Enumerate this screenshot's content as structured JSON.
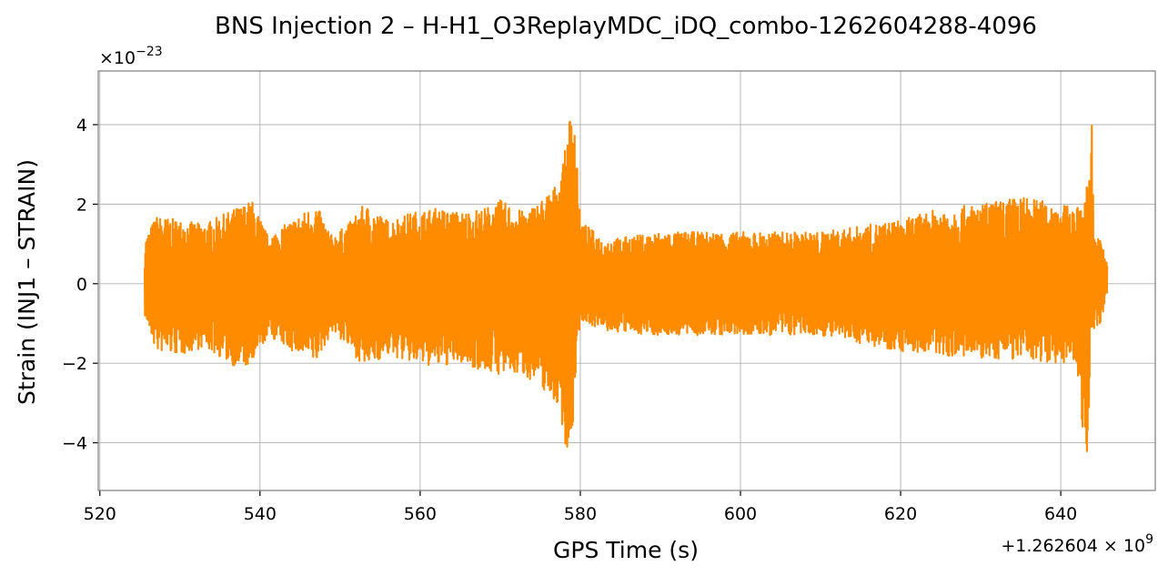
{
  "chart_data": {
    "type": "line",
    "title": "BNS Injection 2 – H-H1_O3ReplayMDC_iDQ_combo-1262604288-4096",
    "xlabel": "GPS Time (s)",
    "ylabel": "Strain (INJ1 – STRAIN)",
    "x_offset_text": {
      "prefix": "+1.262604 × 10",
      "exponent": "9"
    },
    "y_scale_text": {
      "prefix": "×10",
      "exponent": "−23"
    },
    "xlim": [
      519.8,
      651.8
    ],
    "ylim": [
      -5.2,
      5.35
    ],
    "x_ticks": [
      520,
      540,
      560,
      580,
      600,
      620,
      640
    ],
    "x_tick_labels": [
      "520",
      "540",
      "560",
      "580",
      "600",
      "620",
      "640"
    ],
    "y_ticks": [
      -4,
      -2,
      0,
      2,
      4
    ],
    "y_tick_labels": [
      "−4",
      "−2",
      "0",
      "2",
      "4"
    ],
    "grid": true,
    "series": [
      {
        "color": "#ff8c00",
        "x_range": [
          525.6,
          645.8
        ],
        "envelope": {
          "x": [
            525.6,
            527,
            530,
            533,
            537,
            539,
            541,
            544,
            547,
            549,
            551,
            553,
            556,
            559,
            562,
            565,
            568,
            570,
            573,
            575,
            577,
            578,
            578.5,
            579,
            579.3,
            580,
            583,
            590,
            600,
            610,
            620,
            625,
            630,
            635,
            640,
            642,
            643,
            643.5,
            643.8,
            644.2,
            645,
            645.8
          ],
          "upper": [
            1.1,
            1.7,
            1.6,
            1.5,
            1.9,
            2.1,
            1.2,
            1.6,
            2.0,
            1.2,
            1.5,
            2.0,
            1.6,
            1.8,
            1.9,
            1.8,
            1.9,
            2.1,
            1.8,
            2.1,
            2.5,
            3.2,
            4.0,
            4.6,
            4.4,
            1.6,
            1.1,
            1.3,
            1.3,
            1.3,
            1.6,
            1.9,
            2.0,
            2.2,
            2.0,
            1.9,
            2.2,
            2.8,
            4.8,
            1.2,
            1.1,
            0.6
          ],
          "lower": [
            -0.8,
            -1.7,
            -1.8,
            -1.6,
            -2.1,
            -2.1,
            -1.3,
            -1.7,
            -2.0,
            -1.2,
            -1.6,
            -2.1,
            -1.8,
            -2.0,
            -2.1,
            -2.0,
            -2.2,
            -2.3,
            -2.3,
            -2.6,
            -3.0,
            -3.8,
            -4.7,
            -4.0,
            -2.6,
            -0.9,
            -1.2,
            -1.3,
            -1.3,
            -1.3,
            -1.7,
            -1.8,
            -1.9,
            -1.9,
            -2.0,
            -2.0,
            -4.3,
            -4.2,
            -1.5,
            -1.2,
            -1.0,
            -0.2
          ]
        }
      }
    ]
  }
}
